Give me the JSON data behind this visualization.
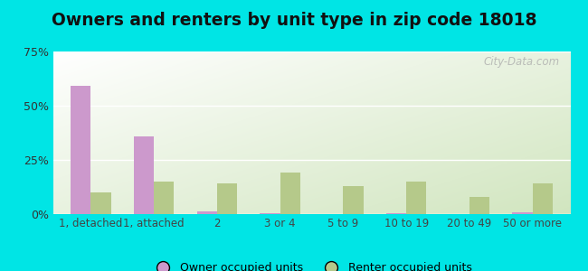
{
  "title": "Owners and renters by unit type in zip code 18018",
  "categories": [
    "1, detached",
    "1, attached",
    "2",
    "3 or 4",
    "5 to 9",
    "10 to 19",
    "20 to 49",
    "50 or more"
  ],
  "owner_values": [
    59,
    36,
    1.2,
    0.5,
    0.2,
    0.3,
    0.2,
    0.7
  ],
  "renter_values": [
    10,
    15,
    14,
    19,
    13,
    15,
    8,
    14
  ],
  "owner_color": "#cc99cc",
  "renter_color": "#b5c98a",
  "bg_outer": "#00e5e5",
  "bg_plot_top_left": "#ffffff",
  "bg_plot_bottom_right": "#c8ddb0",
  "ylim": [
    0,
    75
  ],
  "yticks": [
    0,
    25,
    50,
    75
  ],
  "ytick_labels": [
    "0%",
    "25%",
    "50%",
    "75%"
  ],
  "bar_width": 0.32,
  "title_fontsize": 13.5,
  "legend_owner": "Owner occupied units",
  "legend_renter": "Renter occupied units",
  "watermark": "City-Data.com"
}
